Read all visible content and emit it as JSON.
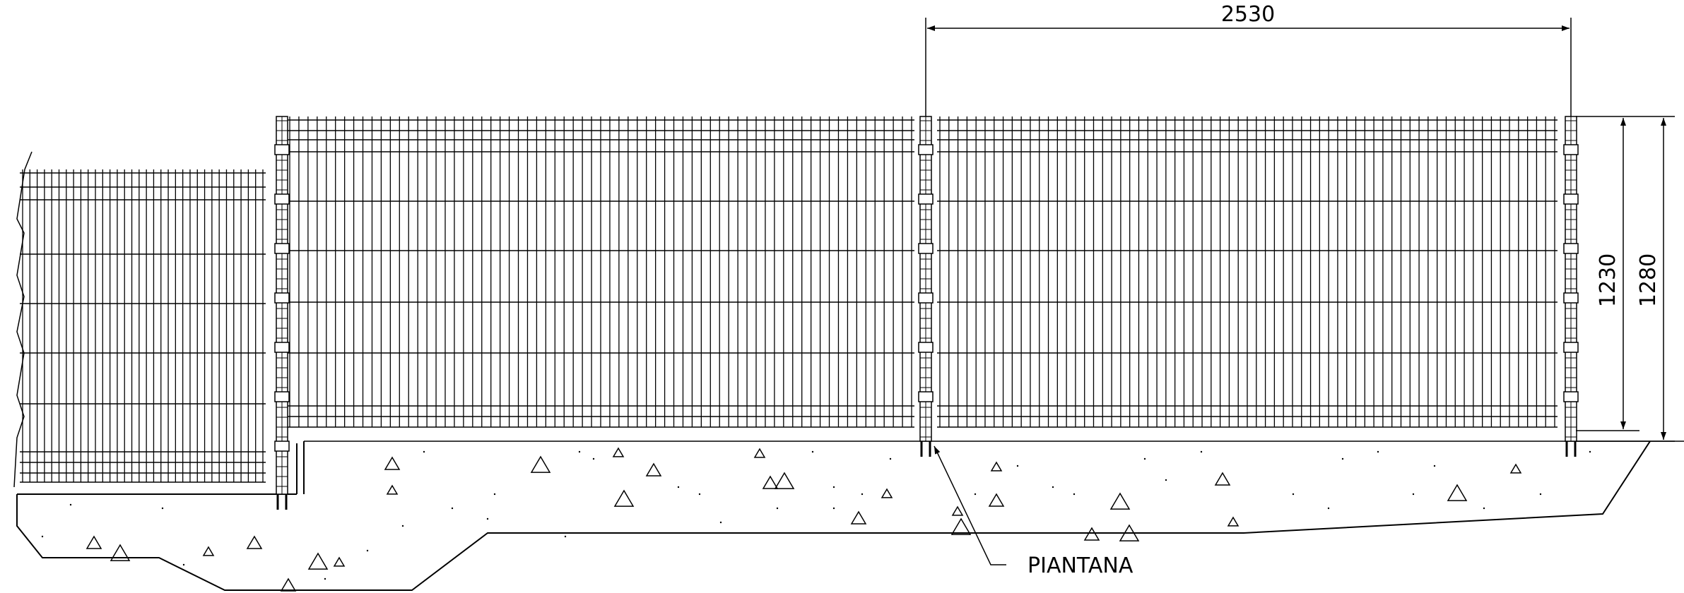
{
  "dimensions": {
    "panel_width": "2530",
    "mesh_height": "1230",
    "total_height": "1280"
  },
  "callout": {
    "label": "PIANTANA"
  },
  "colors": {
    "line": "#000000",
    "background": "#ffffff"
  }
}
